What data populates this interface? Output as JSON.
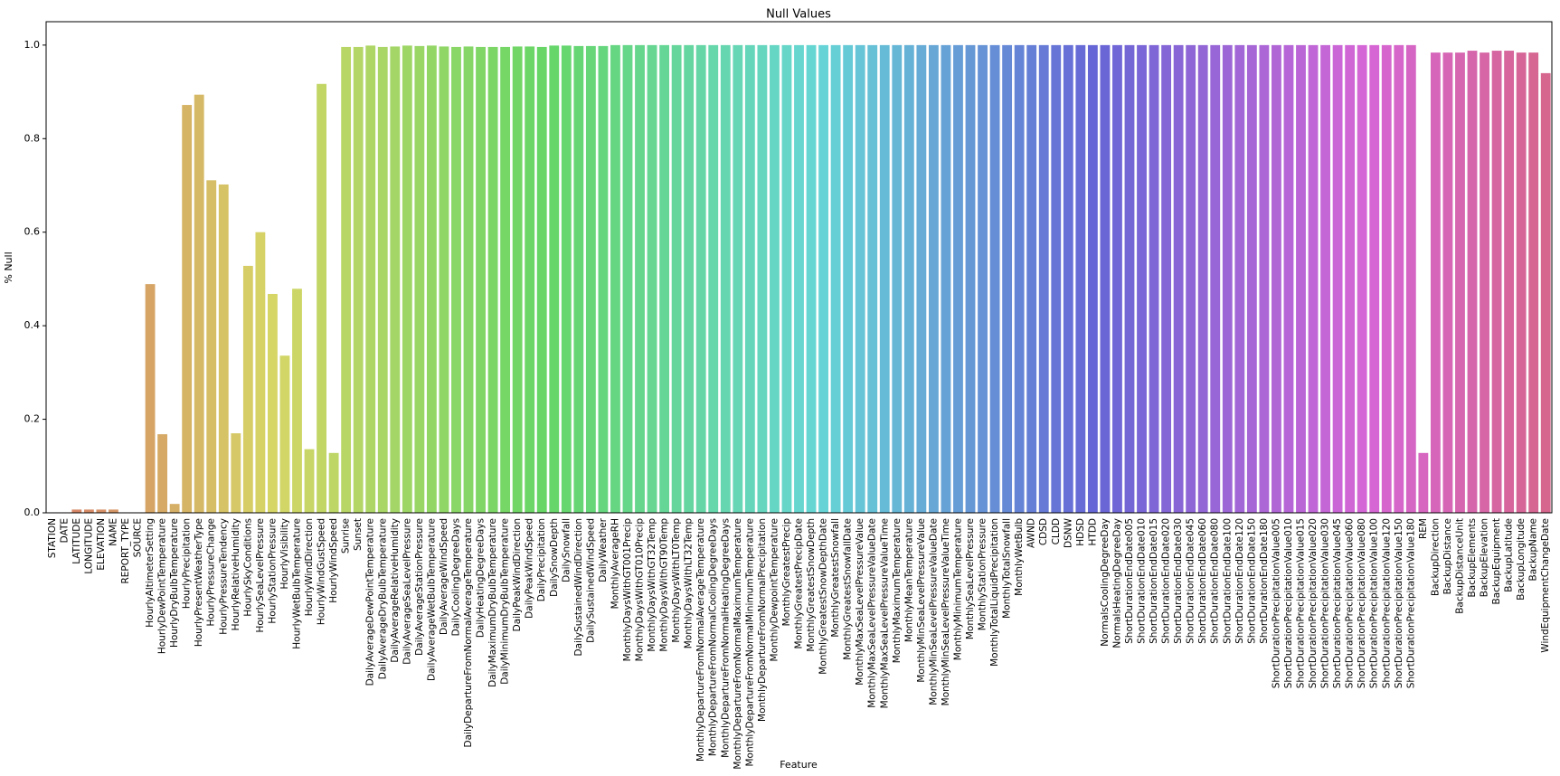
{
  "chart_data": {
    "type": "bar",
    "title": "Null Values",
    "xlabel": "Feature",
    "ylabel": "% Null",
    "palette": "husl",
    "categories": [
      "STATION",
      "DATE",
      "LATITUDE",
      "LONGITUDE",
      "ELEVATION",
      "NAME",
      "REPORT_TYPE",
      "SOURCE",
      "HourlyAltimeterSetting",
      "HourlyDewPointTemperature",
      "HourlyDryBulbTemperature",
      "HourlyPrecipitation",
      "HourlyPresentWeatherType",
      "HourlyPressureChange",
      "HourlyPressureTendency",
      "HourlyRelativeHumidity",
      "HourlySkyConditions",
      "HourlySeaLevelPressure",
      "HourlyStationPressure",
      "HourlyVisibility",
      "HourlyWetBulbTemperature",
      "HourlyWindDirection",
      "HourlyWindGustSpeed",
      "HourlyWindSpeed",
      "Sunrise",
      "Sunset",
      "DailyAverageDewPointTemperature",
      "DailyAverageDryBulbTemperature",
      "DailyAverageRelativeHumidity",
      "DailyAverageSeaLevelPressure",
      "DailyAverageStationPressure",
      "DailyAverageWetBulbTemperature",
      "DailyAverageWindSpeed",
      "DailyCoolingDegreeDays",
      "DailyDepartureFromNormalAverageTemperature",
      "DailyHeatingDegreeDays",
      "DailyMaximumDryBulbTemperature",
      "DailyMinimumDryBulbTemperature",
      "DailyPeakWindDirection",
      "DailyPeakWindSpeed",
      "DailyPrecipitation",
      "DailySnowDepth",
      "DailySnowfall",
      "DailySustainedWindDirection",
      "DailySustainedWindSpeed",
      "DailyWeather",
      "MonthlyAverageRH",
      "MonthlyDaysWithGT001Precip",
      "MonthlyDaysWithGT010Precip",
      "MonthlyDaysWithGT32Temp",
      "MonthlyDaysWithGT90Temp",
      "MonthlyDaysWithLT0Temp",
      "MonthlyDaysWithLT32Temp",
      "MonthlyDepartureFromNormalAverageTemperature",
      "MonthlyDepartureFromNormalCoolingDegreeDays",
      "MonthlyDepartureFromNormalHeatingDegreeDays",
      "MonthlyDepartureFromNormalMaximumTemperature",
      "MonthlyDepartureFromNormalMinimumTemperature",
      "MonthlyDepartureFromNormalPrecipitation",
      "MonthlyDewpointTemperature",
      "MonthlyGreatestPrecip",
      "MonthlyGreatestPrecipDate",
      "MonthlyGreatestSnowDepth",
      "MonthlyGreatestSnowDepthDate",
      "MonthlyGreatestSnowfall",
      "MonthlyGreatestSnowfallDate",
      "MonthlyMaxSeaLevelPressureValue",
      "MonthlyMaxSeaLevelPressureValueDate",
      "MonthlyMaxSeaLevelPressureValueTime",
      "MonthlyMaximumTemperature",
      "MonthlyMeanTemperature",
      "MonthlyMinSeaLevelPressureValue",
      "MonthlyMinSeaLevelPressureValueDate",
      "MonthlyMinSeaLevelPressureValueTime",
      "MonthlyMinimumTemperature",
      "MonthlySeaLevelPressure",
      "MonthlyStationPressure",
      "MonthlyTotalLiquidPrecipitation",
      "MonthlyTotalSnowfall",
      "MonthlyWetBulb",
      "AWND",
      "CDSD",
      "CLDD",
      "DSNW",
      "HDSD",
      "HTDD",
      "NormalsCoolingDegreeDay",
      "NormalsHeatingDegreeDay",
      "ShortDurationEndDate005",
      "ShortDurationEndDate010",
      "ShortDurationEndDate015",
      "ShortDurationEndDate020",
      "ShortDurationEndDate030",
      "ShortDurationEndDate045",
      "ShortDurationEndDate060",
      "ShortDurationEndDate080",
      "ShortDurationEndDate100",
      "ShortDurationEndDate120",
      "ShortDurationEndDate150",
      "ShortDurationEndDate180",
      "ShortDurationPrecipitationValue005",
      "ShortDurationPrecipitationValue010",
      "ShortDurationPrecipitationValue015",
      "ShortDurationPrecipitationValue020",
      "ShortDurationPrecipitationValue030",
      "ShortDurationPrecipitationValue045",
      "ShortDurationPrecipitationValue060",
      "ShortDurationPrecipitationValue080",
      "ShortDurationPrecipitationValue100",
      "ShortDurationPrecipitationValue120",
      "ShortDurationPrecipitationValue150",
      "ShortDurationPrecipitationValue180",
      "REM",
      "BackupDirection",
      "BackupDistance",
      "BackupDistanceUnit",
      "BackupElements",
      "BackupElevation",
      "BackupEquipment",
      "BackupLatitude",
      "BackupLongitude",
      "BackupName",
      "WindEquipmentChangeDate"
    ],
    "values": [
      0,
      0,
      0.007,
      0.007,
      0.007,
      0.007,
      0,
      0,
      0.489,
      0.168,
      0.019,
      0.872,
      0.894,
      0.711,
      0.702,
      0.17,
      0.528,
      0.6,
      0.468,
      0.336,
      0.479,
      0.136,
      0.917,
      0.128,
      0.996,
      0.996,
      0.999,
      0.996,
      0.997,
      0.999,
      0.998,
      0.999,
      0.997,
      0.996,
      0.997,
      0.996,
      0.996,
      0.996,
      0.997,
      0.997,
      0.996,
      0.999,
      0.999,
      0.998,
      0.998,
      0.998,
      1,
      1,
      1,
      1,
      1,
      1,
      1,
      1,
      1,
      1,
      1,
      1,
      1,
      1,
      1,
      1,
      1,
      1,
      1,
      1,
      1,
      1,
      1,
      1,
      1,
      1,
      1,
      1,
      1,
      1,
      1,
      1,
      1,
      1,
      1,
      1,
      1,
      1,
      1,
      1,
      1,
      1,
      1,
      1,
      1,
      1,
      1,
      1,
      1,
      1,
      1,
      1,
      1,
      1,
      1,
      1,
      1,
      1,
      1,
      1,
      1,
      1,
      1,
      1,
      1,
      1,
      0.128,
      0.984,
      0.984,
      0.984,
      0.988,
      0.984,
      0.988,
      0.988,
      0.984,
      0.984,
      0.94
    ],
    "ylim": [
      0,
      1.05
    ],
    "yticks": [
      {
        "value": 0,
        "label": "0.0"
      },
      0.2,
      0.4,
      0.6,
      0.8,
      {
        "value": 1,
        "label": "1.0"
      }
    ]
  }
}
